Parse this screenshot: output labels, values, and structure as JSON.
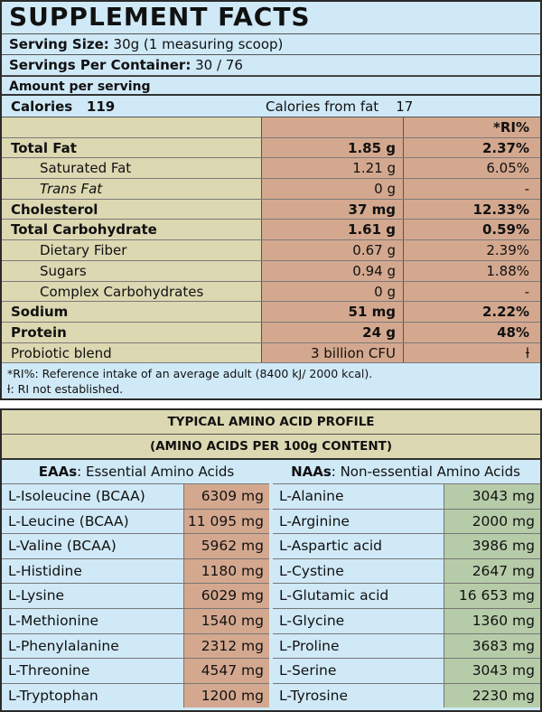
{
  "title": "SUPPLEMENT FACTS",
  "serving_size_label": "Serving Size:",
  "serving_size_value": " 30g (1 measuring scoop)",
  "servings_label": "Servings Per Container:",
  "servings_value": " 30 / 76",
  "amount_per_serving": "Amount per serving",
  "calories_label": "Calories",
  "calories_value": "119",
  "calories_fat_label": "Calories from fat",
  "calories_fat_value": "17",
  "ri_header": "*RI%",
  "nutrients": [
    {
      "name": "Total Fat",
      "amount": "1.85 g",
      "ri": "2.37%"
    },
    {
      "name": "Saturated Fat",
      "amount": "1.21 g",
      "ri": "6.05%"
    },
    {
      "name": "Trans Fat",
      "amount": "0 g",
      "ri": "-"
    },
    {
      "name": "Cholesterol",
      "amount": "37 mg",
      "ri": "12.33%"
    },
    {
      "name": "Total Carbohydrate",
      "amount": "1.61 g",
      "ri": "0.59%"
    },
    {
      "name": "Dietary Fiber",
      "amount": "0.67 g",
      "ri": "2.39%"
    },
    {
      "name": "Sugars",
      "amount": "0.94 g",
      "ri": "1.88%"
    },
    {
      "name": "Complex Carbohydrates",
      "amount": "0 g",
      "ri": "-"
    },
    {
      "name": "Sodium",
      "amount": "51 mg",
      "ri": "2.22%"
    },
    {
      "name": "Protein",
      "amount": "24 g",
      "ri": "48%"
    },
    {
      "name": "Probiotic blend",
      "amount": "3 billion CFU",
      "ri": "ƚ"
    }
  ],
  "footnote1": "*RI%: Reference intake of an average adult (8400 kJ/ 2000 kcal).",
  "footnote2": "ƚ: RI not established.",
  "amino_title": "TYPICAL AMINO ACID PROFILE",
  "amino_subtitle": "(AMINO ACIDS PER 100g CONTENT)",
  "eaa_abbr": "EAAs",
  "eaa_label": ": Essential Amino Acids",
  "naa_abbr": "NAAs",
  "naa_label": ": Non-essential Amino Acids",
  "eaas": [
    {
      "name": "L-Isoleucine (BCAA)",
      "value": "6309 mg"
    },
    {
      "name": "L-Leucine (BCAA)",
      "value": "11 095 mg"
    },
    {
      "name": "L-Valine (BCAA)",
      "value": "5962 mg"
    },
    {
      "name": "L-Histidine",
      "value": "1180 mg"
    },
    {
      "name": "L-Lysine",
      "value": "6029 mg"
    },
    {
      "name": "L-Methionine",
      "value": "1540 mg"
    },
    {
      "name": "L-Phenylalanine",
      "value": "2312 mg"
    },
    {
      "name": "L-Threonine",
      "value": "4547 mg"
    },
    {
      "name": "L-Tryptophan",
      "value": "1200 mg"
    }
  ],
  "naas": [
    {
      "name": "L-Alanine",
      "value": "3043 mg"
    },
    {
      "name": "L-Arginine",
      "value": "2000 mg"
    },
    {
      "name": "L-Aspartic acid",
      "value": "3986 mg"
    },
    {
      "name": "L-Cystine",
      "value": "2647 mg"
    },
    {
      "name": "L-Glutamic acid",
      "value": "16 653 mg"
    },
    {
      "name": "L-Glycine",
      "value": "1360 mg"
    },
    {
      "name": "L-Proline",
      "value": "3683 mg"
    },
    {
      "name": "L-Serine",
      "value": "3043 mg"
    },
    {
      "name": "L-Tyrosine",
      "value": "2230 mg"
    }
  ]
}
